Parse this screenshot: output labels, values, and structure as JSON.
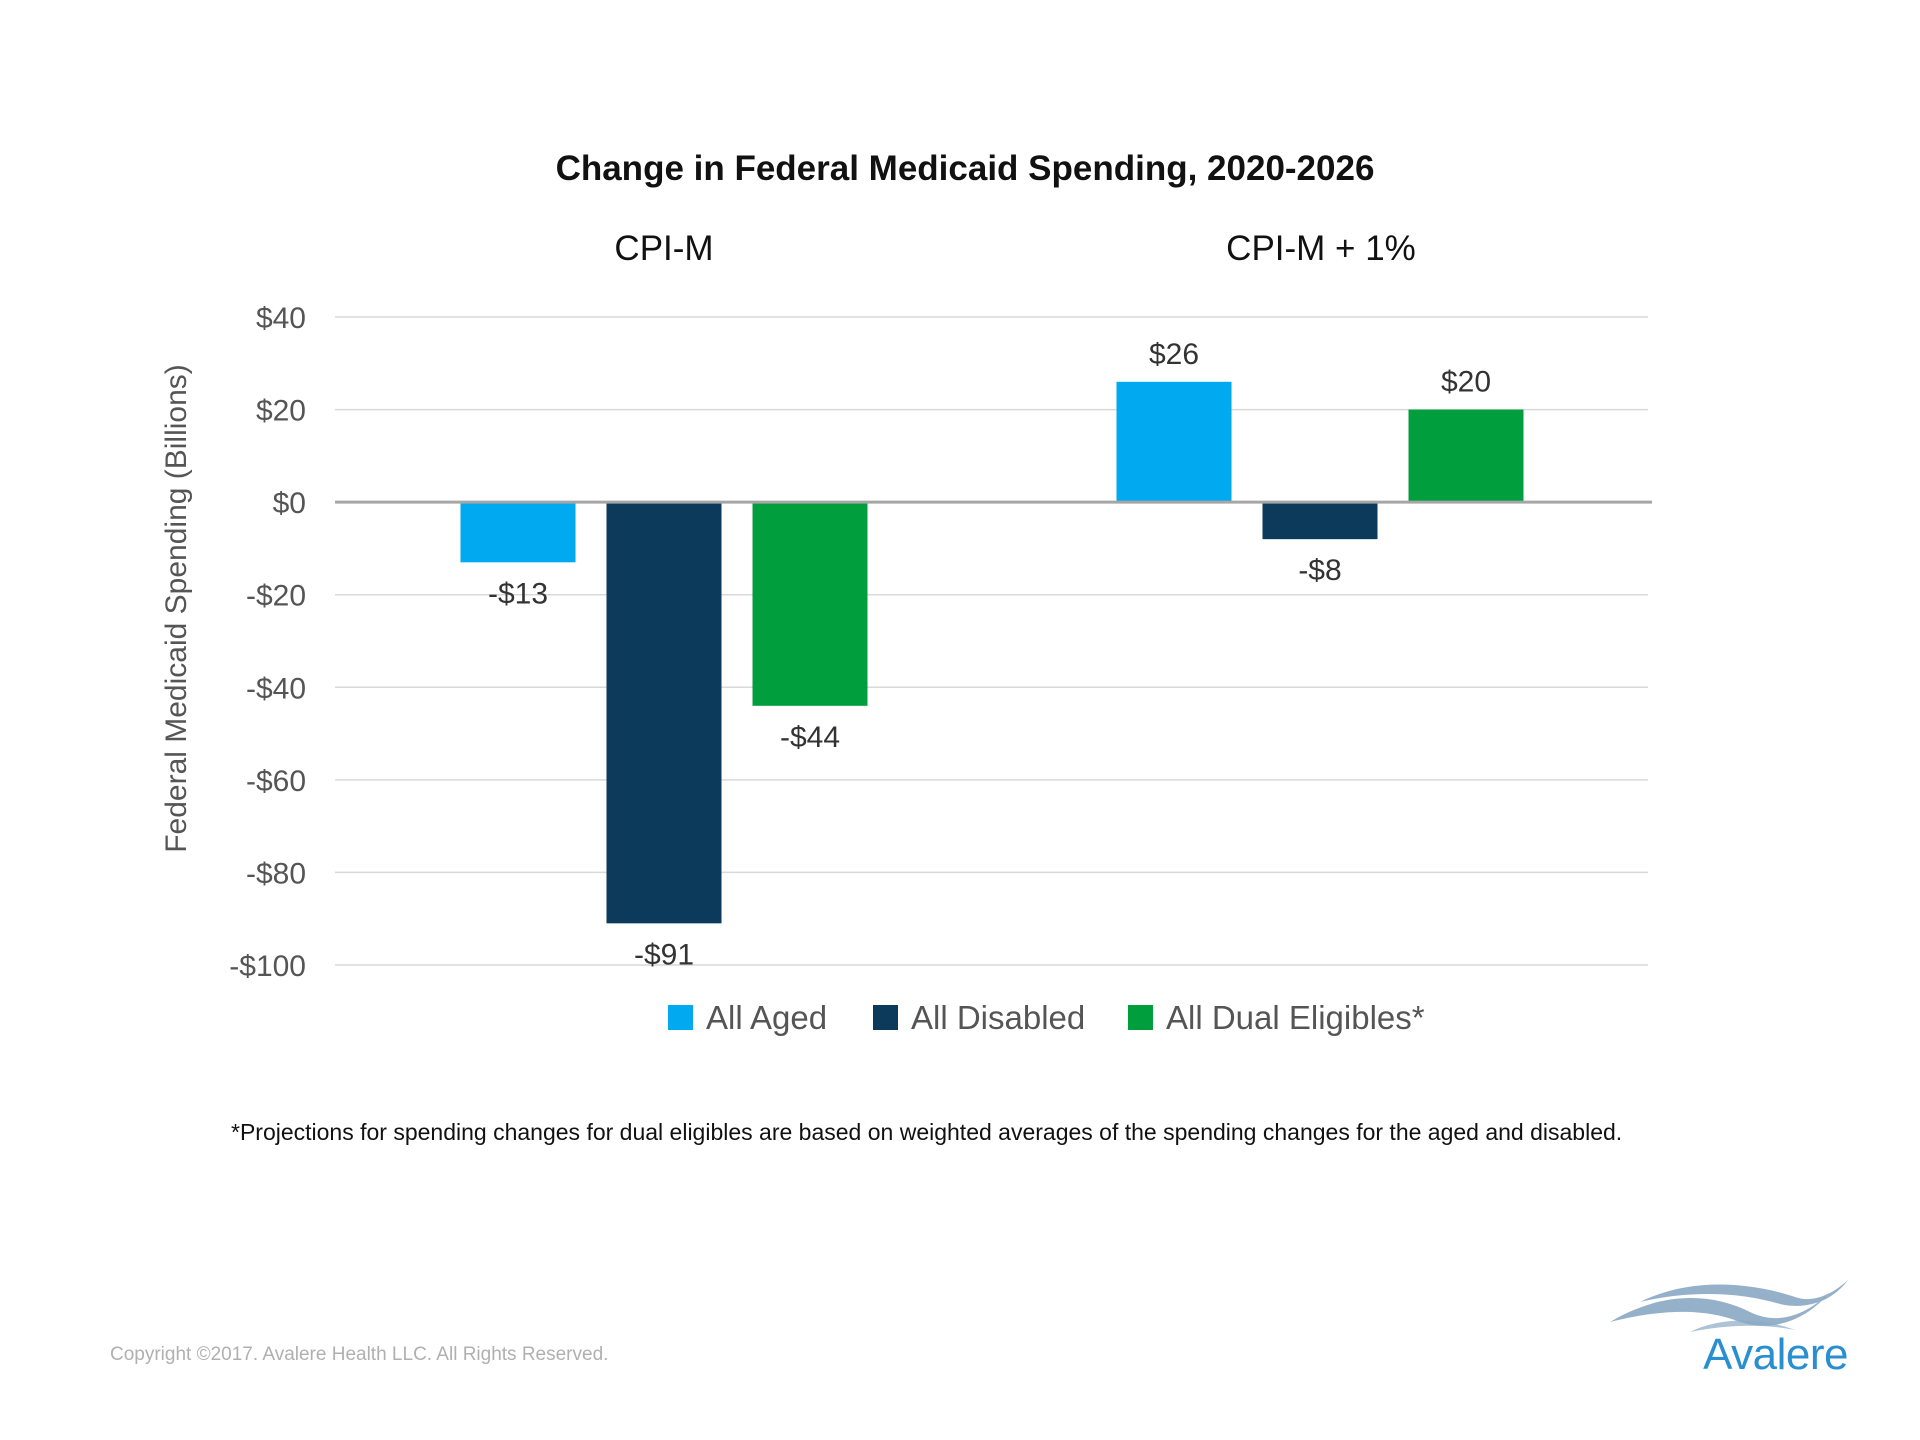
{
  "chart_data": {
    "type": "bar",
    "title": "Change in Federal Medicaid Spending, 2020-2026",
    "ylabel": "Federal Medicaid Spending (Billions)",
    "ylim": [
      -100,
      40
    ],
    "yticks": [
      40,
      20,
      0,
      -20,
      -40,
      -60,
      -80,
      -100
    ],
    "ytick_labels": [
      "$40",
      "$20",
      "$0",
      "-$20",
      "-$40",
      "-$60",
      "-$80",
      "-$100"
    ],
    "categories": [
      "CPI-M",
      "CPI-M  + 1%"
    ],
    "series": [
      {
        "name": "All Aged",
        "color": "#00a9f0",
        "values": [
          -13,
          26
        ],
        "labels": [
          "-$13",
          "$26"
        ]
      },
      {
        "name": "All Disabled",
        "color": "#0b3a5a",
        "values": [
          -91,
          -8
        ],
        "labels": [
          "-$91",
          "-$8"
        ]
      },
      {
        "name": "All Dual Eligibles*",
        "color": "#009e3d",
        "values": [
          -44,
          20
        ],
        "labels": [
          "-$44",
          "$20"
        ]
      }
    ],
    "legend_position": "bottom",
    "grid": true
  },
  "footnote": "*Projections for spending changes for dual eligibles are based on weighted averages of the spending changes for the aged and disabled.",
  "copyright": "Copyright ©2017. Avalere Health LLC. All Rights Reserved.",
  "logo": {
    "text": "Avalere",
    "color": "#2a8fd0",
    "mark_color": "#8aa9c4"
  }
}
